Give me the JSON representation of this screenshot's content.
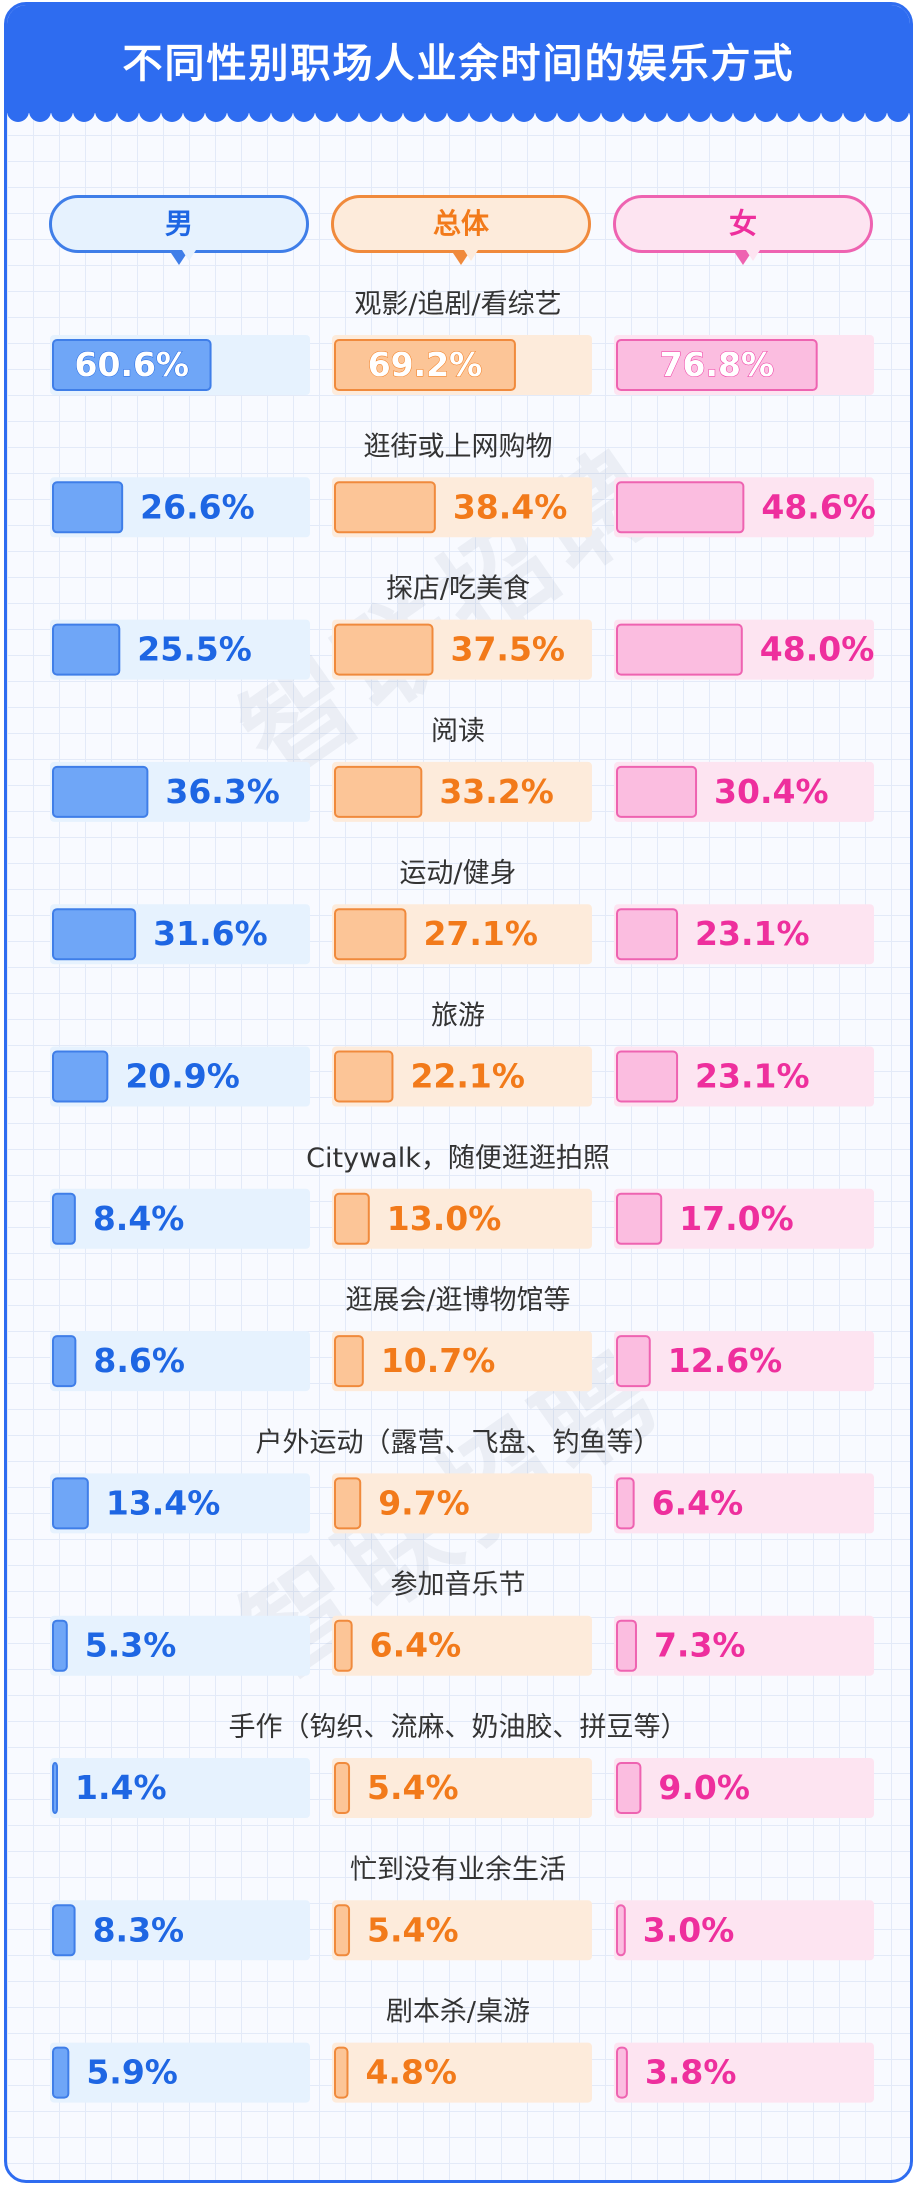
{
  "title": "不同性别职场人业余时间的娱乐方式",
  "watermark": "智联招聘",
  "colors": {
    "title_bg": "#2e6cf0",
    "male_fill": "#6fa6f7",
    "male_stroke": "#3f7ee8",
    "male_track": "#e6f2fe",
    "male_text": "#1e66e3",
    "total_fill": "#fcc597",
    "total_stroke": "#f08a3c",
    "total_track": "#fdebdb",
    "total_text": "#f27a1a",
    "female_fill": "#fbbde0",
    "female_stroke": "#ee63b1",
    "female_track": "#fde4f1",
    "female_text": "#ee2f9d"
  },
  "chart_data": {
    "type": "bar",
    "title": "不同性别职场人业余时间的娱乐方式",
    "unit": "%",
    "xlim": [
      0,
      100
    ],
    "categories": [
      "观影/追剧/看综艺",
      "逛街或上网购物",
      "探店/吃美食",
      "阅读",
      "运动/健身",
      "旅游",
      "Citywalk，随便逛逛拍照",
      "逛展会/逛博物馆等",
      "户外运动（露营、飞盘、钓鱼等）",
      "参加音乐节",
      "手作（钩织、流麻、奶油胶、拼豆等）",
      "忙到没有业余生活",
      "剧本杀/桌游"
    ],
    "series": [
      {
        "name": "男",
        "values": [
          60.6,
          26.6,
          25.5,
          36.3,
          31.6,
          20.9,
          8.4,
          8.6,
          13.4,
          5.3,
          1.4,
          8.3,
          5.9
        ],
        "labels": [
          "60.6%",
          "26.6%",
          "25.5%",
          "36.3%",
          "31.6%",
          "20.9%",
          "8.4%",
          "8.6%",
          "13.4%",
          "5.3%",
          "1.4%",
          "8.3%",
          "5.9%"
        ]
      },
      {
        "name": "总体",
        "values": [
          69.2,
          38.4,
          37.5,
          33.2,
          27.1,
          22.1,
          13.0,
          10.7,
          9.7,
          6.4,
          5.4,
          5.4,
          4.8
        ],
        "labels": [
          "69.2%",
          "38.4%",
          "37.5%",
          "33.2%",
          "27.1%",
          "22.1%",
          "13.0%",
          "10.7%",
          "9.7%",
          "6.4%",
          "5.4%",
          "5.4%",
          "4.8%"
        ]
      },
      {
        "name": "女",
        "values": [
          76.8,
          48.6,
          48.0,
          30.4,
          23.1,
          23.1,
          17.0,
          12.6,
          6.4,
          7.3,
          9.0,
          3.0,
          3.8
        ],
        "labels": [
          "76.8%",
          "48.6%",
          "48.0%",
          "30.4%",
          "23.1%",
          "23.1%",
          "17.0%",
          "12.6%",
          "6.4%",
          "7.3%",
          "9.0%",
          "3.0%",
          "3.8%"
        ]
      }
    ]
  }
}
